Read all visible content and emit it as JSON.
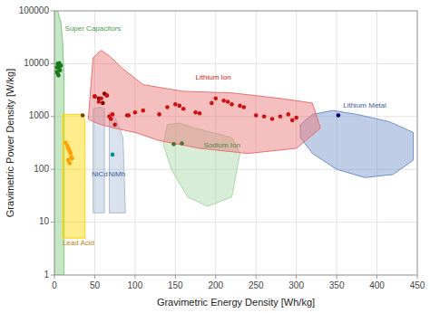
{
  "chart_data": {
    "type": "scatter",
    "x_label": "Gravimetric Energy Density [Wh/kg]",
    "y_label": "Gravimetric Power Density [W/kg]",
    "log": "y",
    "grid": true,
    "xlim": [
      0,
      450
    ],
    "ylim": [
      1,
      100000
    ],
    "xticks": [
      0,
      50,
      100,
      150,
      200,
      250,
      300,
      350,
      400,
      450
    ],
    "yticks": [
      1,
      10,
      100,
      1000,
      10000,
      100000
    ],
    "regions": [
      {
        "color": "#7EC87E",
        "x": [
          0,
          0,
          4,
          8,
          10,
          12,
          12
        ],
        "values": [
          1,
          100000,
          100000,
          60000,
          30000,
          5000,
          1
        ]
      },
      {
        "color": "#FFD700",
        "x": [
          10,
          10,
          18,
          35,
          38,
          38
        ],
        "values": [
          5,
          1100,
          1100,
          1100,
          800,
          5
        ]
      },
      {
        "color": "#AABDD4",
        "x": [
          48,
          48,
          56,
          62,
          62
        ],
        "values": [
          15,
          1400,
          1500,
          1400,
          15
        ]
      },
      {
        "color": "#AABDD4",
        "x": [
          68,
          68,
          76,
          85,
          88
        ],
        "values": [
          15,
          1200,
          900,
          400,
          15
        ]
      },
      {
        "color": "#A8D8A8",
        "x": [
          140,
          155,
          175,
          220,
          230,
          220,
          190,
          165,
          145,
          135
        ],
        "values": [
          700,
          750,
          600,
          400,
          200,
          30,
          20,
          30,
          100,
          300
        ]
      },
      {
        "color": "#7090C8",
        "x": [
          305,
          320,
          345,
          375,
          415,
          445,
          445,
          420,
          385,
          350,
          320,
          305
        ],
        "values": [
          700,
          1100,
          1300,
          1100,
          800,
          500,
          150,
          80,
          70,
          100,
          200,
          400
        ]
      },
      {
        "color": "#E87070",
        "x": [
          42,
          48,
          58,
          68,
          85,
          110,
          160,
          220,
          280,
          320,
          330,
          300,
          240,
          180,
          130,
          100,
          75,
          58,
          48
        ],
        "values": [
          900,
          13000,
          18000,
          14000,
          8000,
          4000,
          3000,
          2800,
          2200,
          1800,
          600,
          250,
          200,
          250,
          350,
          500,
          600,
          700,
          800
        ]
      }
    ],
    "annotations": [
      {
        "text": "Super Capacitors",
        "x": 13,
        "y": 45000,
        "color": "#4A9A4A"
      },
      {
        "text": "Lithium Ion",
        "x": 175,
        "y": 5500,
        "color": "#CC2222"
      },
      {
        "text": "Lead Acid",
        "x": 10,
        "y": 4,
        "color": "#B8860B"
      },
      {
        "text": "NiCd",
        "x": 46,
        "y": 80,
        "color": "#4060A0"
      },
      {
        "text": "NiMh",
        "x": 67,
        "y": 80,
        "color": "#4060A0"
      },
      {
        "text": "Sodium Ion",
        "x": 185,
        "y": 280,
        "color": "#4A8A4A"
      },
      {
        "text": "Lithium Metal",
        "x": 358,
        "y": 1600,
        "color": "#4060A0"
      }
    ],
    "series": [
      {
        "color": "#1A7A1A",
        "x": [
          3,
          4,
          5,
          5,
          6,
          7,
          8,
          6,
          7,
          4,
          5,
          3
        ],
        "values": [
          8500,
          10000,
          9800,
          8800,
          10200,
          9500,
          9200,
          8000,
          7500,
          6500,
          6000,
          7000
        ]
      },
      {
        "color": "#880000",
        "x": [
          50,
          55,
          60,
          62,
          65
        ],
        "values": [
          2400,
          2200,
          1800,
          2700,
          2500
        ]
      },
      {
        "color": "#CC1111",
        "x": [
          50,
          55,
          58,
          65,
          68,
          70,
          72,
          75,
          90,
          92,
          100,
          110,
          130,
          140,
          150,
          155,
          160,
          175,
          180,
          195,
          200,
          210,
          215,
          220,
          230,
          235,
          250,
          260,
          270,
          280,
          290,
          295,
          300
        ],
        "values": [
          2400,
          1900,
          2200,
          2500,
          1000,
          900,
          1100,
          700,
          1050,
          1050,
          1200,
          1300,
          1100,
          1500,
          1700,
          1600,
          1400,
          1200,
          1150,
          1800,
          2200,
          2000,
          1900,
          1700,
          1600,
          1500,
          1050,
          1000,
          900,
          1000,
          1100,
          850,
          950
        ]
      },
      {
        "color": "#FFA000",
        "x": [
          14,
          16,
          17,
          18,
          19,
          20,
          21,
          22,
          17,
          19
        ],
        "values": [
          320,
          280,
          250,
          240,
          220,
          200,
          170,
          160,
          150,
          130
        ]
      },
      {
        "color": "#009090",
        "x": [
          72
        ],
        "values": [
          190
        ]
      },
      {
        "color": "#000080",
        "x": [
          352
        ],
        "values": [
          1050
        ]
      },
      {
        "color": "#7A4010",
        "x": [
          35
        ],
        "values": [
          1050
        ]
      },
      {
        "color": "#507030",
        "x": [
          148,
          158
        ],
        "values": [
          300,
          310
        ]
      }
    ]
  }
}
